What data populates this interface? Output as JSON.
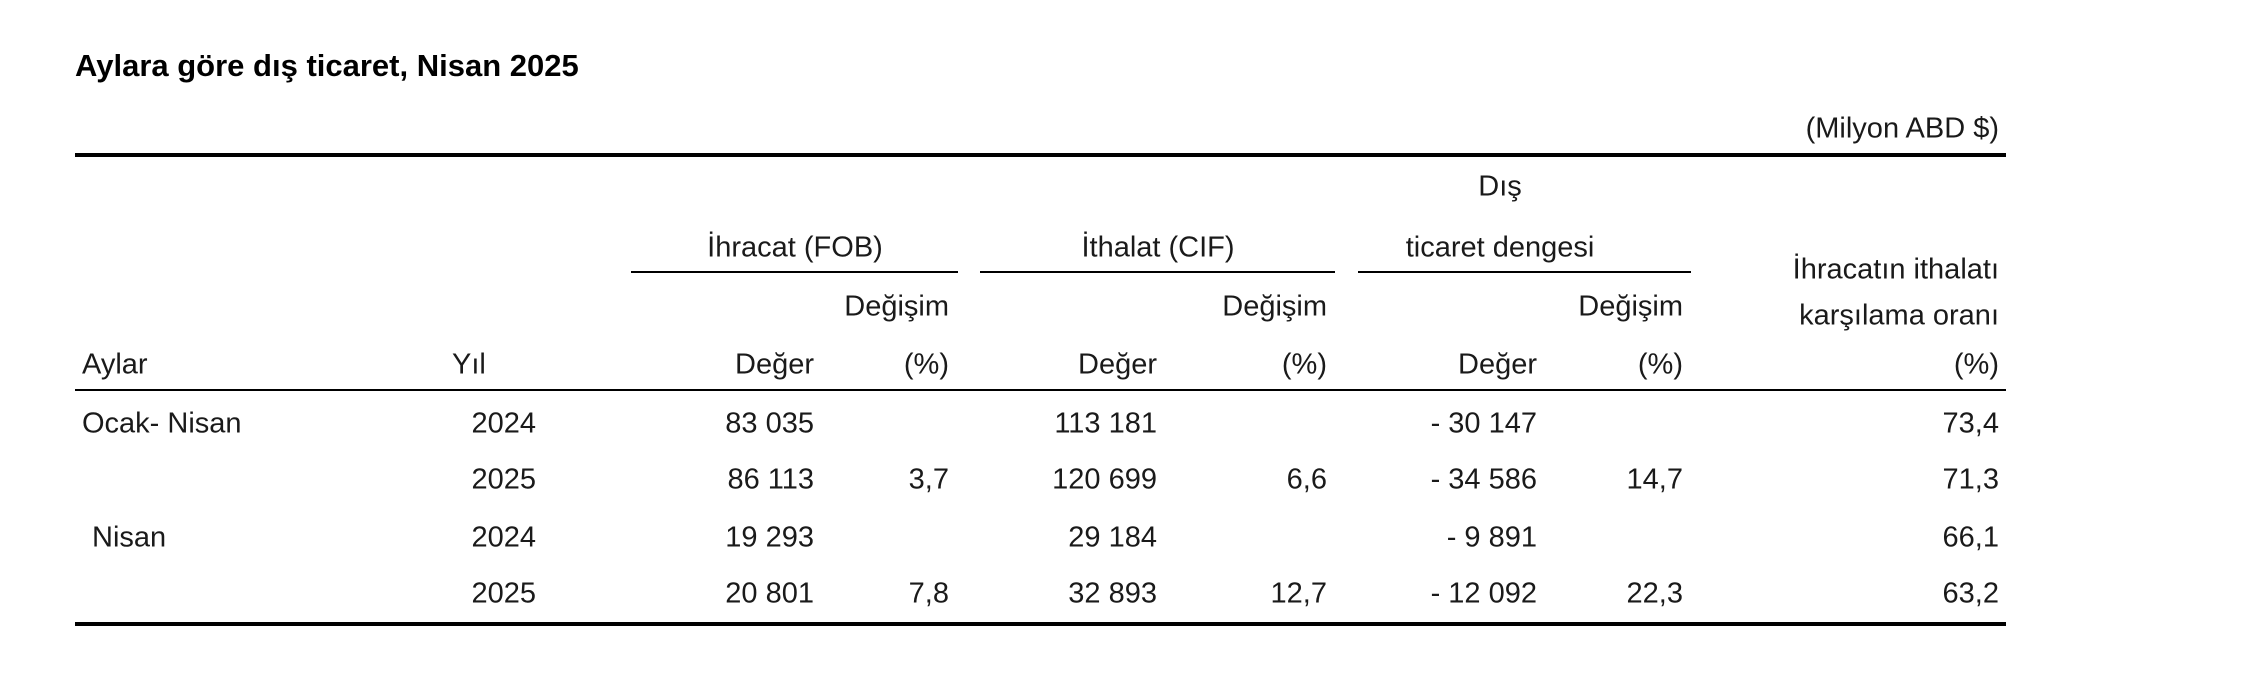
{
  "header": {
    "title": "Aylara göre dış ticaret, Nisan 2025",
    "unit": "(Milyon ABD $)"
  },
  "table": {
    "group_headers": {
      "exports": "İhracat (FOB)",
      "imports": "İthalat (CIF)",
      "balance": [
        "Dış",
        "ticaret dengesi"
      ],
      "coverage": [
        "İhracatın ithalatı",
        "karşılama oranı"
      ]
    },
    "change_headers": [
      "Değişim",
      "Değişim",
      "Değişim"
    ],
    "columns": [
      "Aylar",
      "Yıl",
      "Değer",
      "(%)",
      "Değer",
      "(%)",
      "Değer",
      "(%)",
      "(%)"
    ],
    "rows": [
      [
        "Ocak- Nisan",
        "2024",
        "83 035",
        null,
        "113 181",
        null,
        "- 30 147",
        null,
        "73,4"
      ],
      [
        null,
        "2025",
        "86 113",
        "3,7",
        "120 699",
        "6,6",
        "- 34 586",
        "14,7",
        "71,3"
      ],
      [
        "Nisan",
        "2024",
        "19 293",
        null,
        "29 184",
        null,
        "- 9 891",
        null,
        "66,1"
      ],
      [
        null,
        "2025",
        "20 801",
        "7,8",
        "32 893",
        "12,7",
        "- 12 092",
        "22,3",
        "63,2"
      ]
    ]
  }
}
